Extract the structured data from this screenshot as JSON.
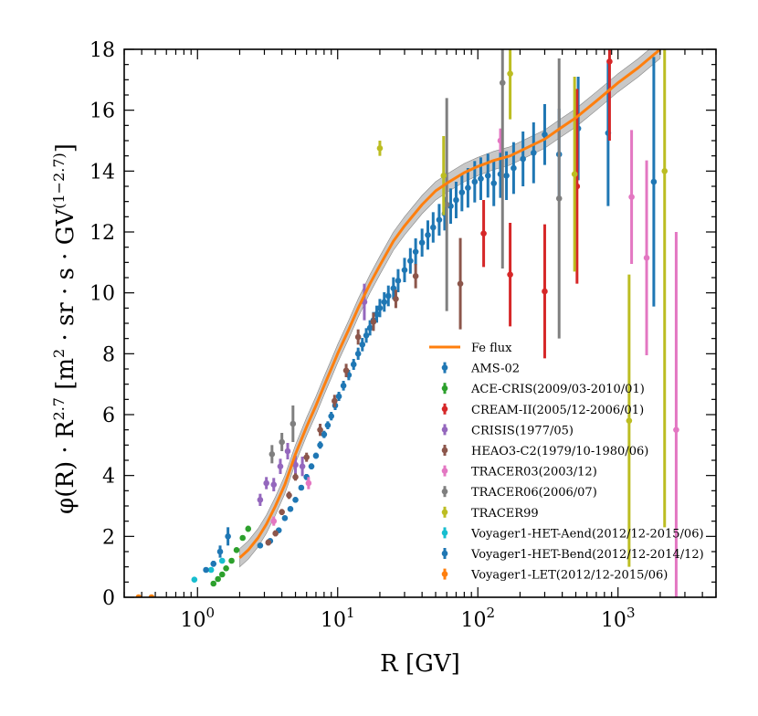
{
  "chart_data": {
    "type": "scatter",
    "x_scale": "log",
    "xlabel": "R [GV]",
    "ylabel": "φ(R) · R^2.7 [m^2 · sr · s · GV^(1−2.7)]",
    "ylabel_parts": {
      "phi": "φ(R) · R",
      "exp1": "2.7",
      "units_open": " [m",
      "exp2": "2",
      "units_mid": " · sr · s · GV",
      "exp3": "(1−2.7)",
      "units_close": "]"
    },
    "xlim": [
      0.3,
      5000
    ],
    "ylim": [
      0,
      18
    ],
    "x_ticks": [
      {
        "value": 1,
        "base": "10",
        "exp": "0"
      },
      {
        "value": 10,
        "base": "10",
        "exp": "1"
      },
      {
        "value": 100,
        "base": "10",
        "exp": "2"
      },
      {
        "value": 1000,
        "base": "10",
        "exp": "3"
      }
    ],
    "y_ticks": [
      0,
      2,
      4,
      6,
      8,
      10,
      12,
      14,
      16,
      18
    ],
    "legend_position": "lower-right",
    "fit_band": {
      "color": "#b5b5b5",
      "half_width": 0.3
    },
    "fit": {
      "name": "Fe flux",
      "color": "#ff7f0e",
      "x": [
        2.0,
        2.3,
        2.7,
        3.1,
        3.6,
        4.2,
        5,
        6,
        7,
        8,
        9,
        10,
        12,
        14,
        17,
        20,
        25,
        30,
        40,
        50,
        60,
        80,
        100,
        130,
        170,
        220,
        300,
        400,
        500,
        700,
        1000,
        1400,
        2000
      ],
      "y": [
        1.3,
        1.55,
        1.95,
        2.4,
        3.0,
        3.7,
        4.7,
        5.6,
        6.3,
        6.95,
        7.5,
        8.0,
        8.8,
        9.5,
        10.3,
        10.9,
        11.7,
        12.2,
        12.9,
        13.35,
        13.6,
        13.95,
        14.15,
        14.35,
        14.5,
        14.75,
        15.05,
        15.45,
        15.75,
        16.3,
        16.9,
        17.4,
        18.0
      ]
    },
    "series": [
      {
        "name": "AMS-02",
        "color": "#1f77b4",
        "points": [
          [
            2.8,
            1.7,
            0.08
          ],
          [
            3.3,
            1.85,
            0.08
          ],
          [
            3.8,
            2.2,
            0.08
          ],
          [
            4.2,
            2.6,
            0.08
          ],
          [
            4.6,
            2.9,
            0.08
          ],
          [
            5.0,
            3.2,
            0.09
          ],
          [
            5.5,
            3.6,
            0.09
          ],
          [
            6.0,
            3.95,
            0.1
          ],
          [
            6.5,
            4.3,
            0.1
          ],
          [
            7.0,
            4.65,
            0.1
          ],
          [
            7.5,
            5.0,
            0.12
          ],
          [
            8.0,
            5.35,
            0.12
          ],
          [
            8.5,
            5.65,
            0.13
          ],
          [
            9.0,
            5.95,
            0.14
          ],
          [
            9.6,
            6.3,
            0.15
          ],
          [
            10.2,
            6.6,
            0.15
          ],
          [
            11.0,
            6.95,
            0.16
          ],
          [
            12.0,
            7.3,
            0.17
          ],
          [
            13.0,
            7.65,
            0.18
          ],
          [
            14.0,
            8.0,
            0.2
          ],
          [
            15.0,
            8.3,
            0.22
          ],
          [
            16.0,
            8.6,
            0.24
          ],
          [
            17.0,
            8.85,
            0.25
          ],
          [
            18.0,
            9.1,
            0.27
          ],
          [
            19.0,
            9.3,
            0.28
          ],
          [
            20.0,
            9.5,
            0.3
          ],
          [
            21.5,
            9.7,
            0.32
          ],
          [
            23.0,
            9.9,
            0.34
          ],
          [
            25.0,
            10.15,
            0.36
          ],
          [
            27.0,
            10.4,
            0.38
          ],
          [
            30.0,
            10.75,
            0.4
          ],
          [
            33.0,
            11.05,
            0.42
          ],
          [
            36.0,
            11.35,
            0.44
          ],
          [
            40.0,
            11.65,
            0.46
          ],
          [
            44.0,
            11.9,
            0.48
          ],
          [
            48.0,
            12.15,
            0.5
          ],
          [
            53.0,
            12.4,
            0.52
          ],
          [
            58.0,
            12.6,
            0.55
          ],
          [
            64.0,
            12.85,
            0.58
          ],
          [
            70.0,
            13.05,
            0.6
          ],
          [
            77.0,
            13.3,
            0.62
          ],
          [
            85.0,
            13.45,
            0.65
          ],
          [
            95.0,
            13.65,
            0.68
          ],
          [
            105.0,
            13.75,
            0.7
          ],
          [
            118.0,
            13.85,
            0.72
          ],
          [
            130.0,
            13.6,
            0.75
          ],
          [
            145.0,
            13.9,
            0.78
          ],
          [
            160.0,
            13.85,
            0.8
          ],
          [
            180.0,
            14.1,
            0.85
          ],
          [
            210.0,
            14.4,
            0.9
          ],
          [
            250.0,
            14.6,
            1.0
          ],
          [
            300.0,
            15.2,
            1.0
          ],
          [
            380.0,
            14.55,
            1.5
          ],
          [
            520.0,
            15.4,
            1.7
          ],
          [
            850.0,
            15.25,
            2.4
          ],
          [
            1800.0,
            13.65,
            4.1
          ]
        ]
      },
      {
        "name": "ACE-CRIS(2009/03-2010/01)",
        "color": "#2ca02c",
        "points": [
          [
            1.3,
            0.45,
            0.06
          ],
          [
            1.4,
            0.6,
            0.06
          ],
          [
            1.5,
            0.75,
            0.06
          ],
          [
            1.6,
            0.95,
            0.06
          ],
          [
            1.75,
            1.2,
            0.07
          ],
          [
            1.9,
            1.55,
            0.07
          ],
          [
            2.1,
            1.95,
            0.08
          ],
          [
            2.3,
            2.25,
            0.1
          ]
        ]
      },
      {
        "name": "CREAM-II(2005/12-2006/01)",
        "color": "#d62728",
        "points": [
          [
            110,
            11.95,
            1.1
          ],
          [
            170,
            10.6,
            1.7
          ],
          [
            300,
            10.05,
            2.2
          ],
          [
            510,
            13.5,
            3.2
          ],
          [
            870,
            17.6,
            2.6
          ]
        ]
      },
      {
        "name": "CRISIS(1977/05)",
        "color": "#9467bd",
        "points": [
          [
            2.8,
            3.2,
            0.2
          ],
          [
            3.1,
            3.75,
            0.2
          ],
          [
            3.5,
            3.7,
            0.22
          ],
          [
            3.9,
            4.3,
            0.25
          ],
          [
            4.4,
            4.8,
            0.27
          ],
          [
            5.0,
            4.35,
            0.3
          ],
          [
            5.6,
            4.3,
            0.32
          ],
          [
            15.5,
            9.7,
            0.6
          ]
        ]
      },
      {
        "name": "HEAO3-C2(1979/10-1980/06)",
        "color": "#8c564b",
        "points": [
          [
            3.2,
            1.8,
            0.1
          ],
          [
            3.6,
            2.1,
            0.1
          ],
          [
            4.0,
            2.8,
            0.1
          ],
          [
            4.5,
            3.35,
            0.12
          ],
          [
            5.0,
            3.95,
            0.12
          ],
          [
            6.0,
            4.6,
            0.15
          ],
          [
            7.5,
            5.5,
            0.2
          ],
          [
            9.5,
            6.45,
            0.2
          ],
          [
            11.5,
            7.45,
            0.22
          ],
          [
            14.0,
            8.55,
            0.25
          ],
          [
            18.0,
            9.05,
            0.3
          ],
          [
            26.0,
            9.8,
            0.3
          ],
          [
            36.0,
            10.55,
            0.4
          ],
          [
            75.0,
            10.3,
            1.5
          ]
        ]
      },
      {
        "name": "TRACER03(2003/12)",
        "color": "#e377c2",
        "points": [
          [
            3.5,
            2.5,
            0.15
          ],
          [
            6.2,
            3.75,
            0.2
          ],
          [
            145,
            15.0,
            0.4
          ],
          [
            1250,
            13.15,
            2.2
          ],
          [
            1600,
            11.15,
            3.2
          ],
          [
            2600,
            5.5,
            6.5
          ]
        ]
      },
      {
        "name": "TRACER06(2006/07)",
        "color": "#7f7f7f",
        "points": [
          [
            3.4,
            4.7,
            0.3
          ],
          [
            4.0,
            5.1,
            0.3
          ],
          [
            4.8,
            5.7,
            0.6
          ],
          [
            60,
            12.9,
            3.5
          ],
          [
            150,
            16.9,
            6.1
          ],
          [
            380,
            13.1,
            4.6
          ]
        ]
      },
      {
        "name": "TRACER99",
        "color": "#bcbd22",
        "points": [
          [
            20,
            14.75,
            0.25
          ],
          [
            57,
            13.85,
            1.3
          ],
          [
            170,
            17.2,
            1.5
          ],
          [
            490,
            13.9,
            3.2
          ],
          [
            1200,
            5.8,
            4.8
          ],
          [
            2150,
            14.0,
            11.7
          ]
        ]
      },
      {
        "name": "Voyager1-HET-Aend(2012/12-2015/06)",
        "color": "#17becf",
        "points": [
          [
            0.95,
            0.58,
            0.05
          ],
          [
            1.25,
            0.9,
            0.06
          ],
          [
            1.5,
            1.2,
            0.07
          ]
        ]
      },
      {
        "name": "Voyager1-HET-Bend(2012/12-2014/12)",
        "color": "#1f77b4",
        "points": [
          [
            1.15,
            0.9,
            0.08
          ],
          [
            1.3,
            1.1,
            0.1
          ],
          [
            1.45,
            1.5,
            0.2
          ],
          [
            1.65,
            2.0,
            0.3
          ]
        ]
      },
      {
        "name": "Voyager1-LET(2012/12-2015/06)",
        "color": "#ff7f0e",
        "points": [
          [
            0.38,
            0.0,
            0.06
          ],
          [
            0.47,
            0.0,
            0.06
          ]
        ]
      }
    ]
  }
}
